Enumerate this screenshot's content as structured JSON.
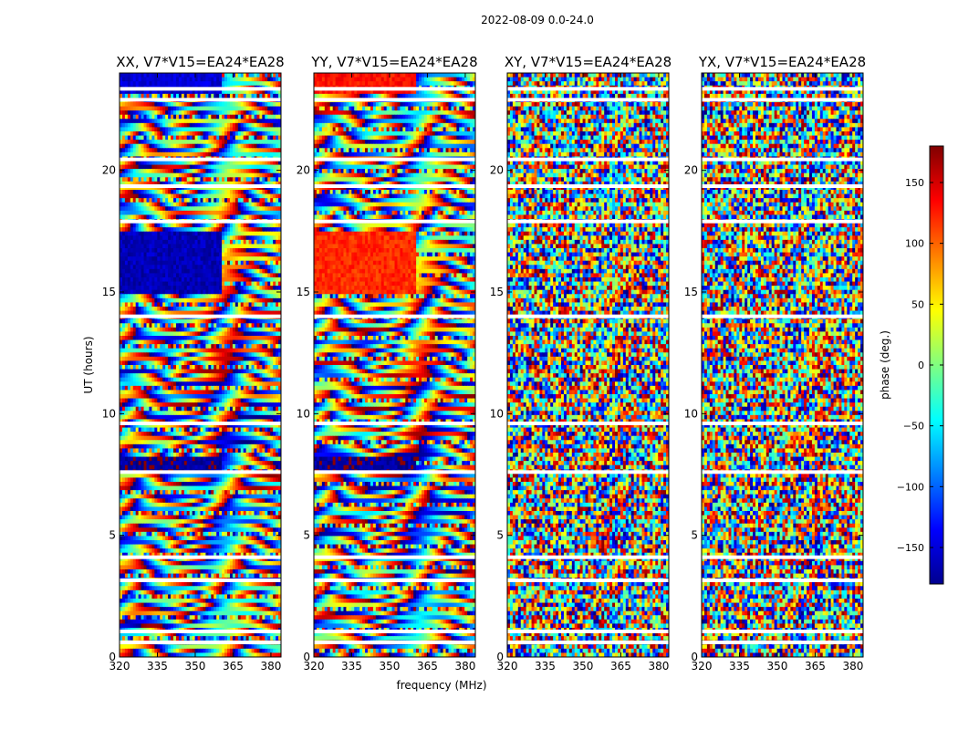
{
  "chart_data": {
    "type": "heatmap",
    "suptitle": "2022-08-09 0.0-24.0",
    "xlabel": "frequency (MHz)",
    "ylabel": "UT (hours)",
    "xlim": [
      320,
      384
    ],
    "ylim": [
      0,
      24
    ],
    "xticks": [
      320,
      335,
      350,
      365,
      380
    ],
    "yticks": [
      0,
      5,
      10,
      15,
      20
    ],
    "panels": [
      {
        "title": "XX, V7*V15=EA24*EA28",
        "pol": "XX"
      },
      {
        "title": "YY, V7*V15=EA24*EA28",
        "pol": "YY"
      },
      {
        "title": "XY, V7*V15=EA24*EA28",
        "pol": "XY"
      },
      {
        "title": "YX, V7*V15=EA24*EA28",
        "pol": "YX"
      }
    ],
    "colorbar": {
      "label": "phase (deg.)",
      "range": [
        -180,
        180
      ],
      "ticks": [
        150,
        100,
        50,
        0,
        -50,
        -100,
        -150
      ],
      "colormap": "jet"
    },
    "flagged_ut_hours": [
      0.6,
      1.05,
      3.15,
      4.1,
      7.6,
      9.6,
      14.0,
      17.9,
      19.35,
      20.45,
      22.9,
      23.35
    ],
    "coherent_blocks": [
      {
        "ut_start": 15.0,
        "ut_end": 17.5,
        "freq_max": 361,
        "xx_phase": -160,
        "yy_phase": 120
      },
      {
        "ut_start": 23.2,
        "ut_end": 24.0,
        "freq_max": 361,
        "xx_phase": -150,
        "yy_phase": 130
      },
      {
        "ut_start": 7.6,
        "ut_end": 8.3,
        "freq_max": 361,
        "xx_phase": -170,
        "yy_phase": -170
      }
    ]
  }
}
